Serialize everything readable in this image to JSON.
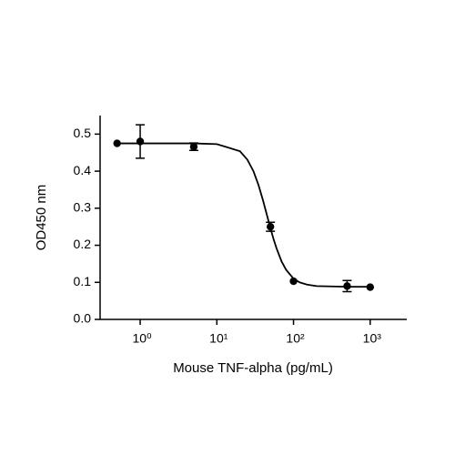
{
  "chart_data": {
    "type": "scatter",
    "x_label": "Mouse TNF-alpha (pg/mL)",
    "y_label": "OD450 nm",
    "xscale": "log",
    "xlim": [
      0.3,
      3000
    ],
    "ylim": [
      0,
      0.55
    ],
    "xticks": [
      {
        "value": 1,
        "label": "10⁰"
      },
      {
        "value": 10,
        "label": "10¹"
      },
      {
        "value": 100,
        "label": "10²"
      },
      {
        "value": 1000,
        "label": "10³"
      }
    ],
    "yticks": [
      {
        "value": 0,
        "label": "0.0"
      },
      0.1,
      0.2,
      0.3,
      0.4,
      0.5
    ],
    "color": "#000000",
    "x": [
      0.5,
      1,
      5,
      50,
      100,
      500,
      1000
    ],
    "values": [
      0.475,
      0.48,
      0.466,
      0.25,
      0.103,
      0.09,
      0.087
    ],
    "errors": [
      null,
      0.045,
      0.01,
      0.012,
      null,
      0.015,
      null
    ],
    "curve": {
      "x": [
        0.5,
        1,
        2,
        5,
        10,
        20,
        25,
        30,
        35,
        40,
        45,
        50,
        55,
        60,
        70,
        80,
        100,
        120,
        150,
        200,
        500,
        1000
      ],
      "values": [
        0.475,
        0.475,
        0.475,
        0.475,
        0.473,
        0.454,
        0.431,
        0.4,
        0.362,
        0.321,
        0.2815,
        0.246,
        0.216,
        0.192,
        0.156,
        0.134,
        0.11,
        0.1,
        0.094,
        0.09,
        0.088,
        0.088
      ]
    }
  }
}
